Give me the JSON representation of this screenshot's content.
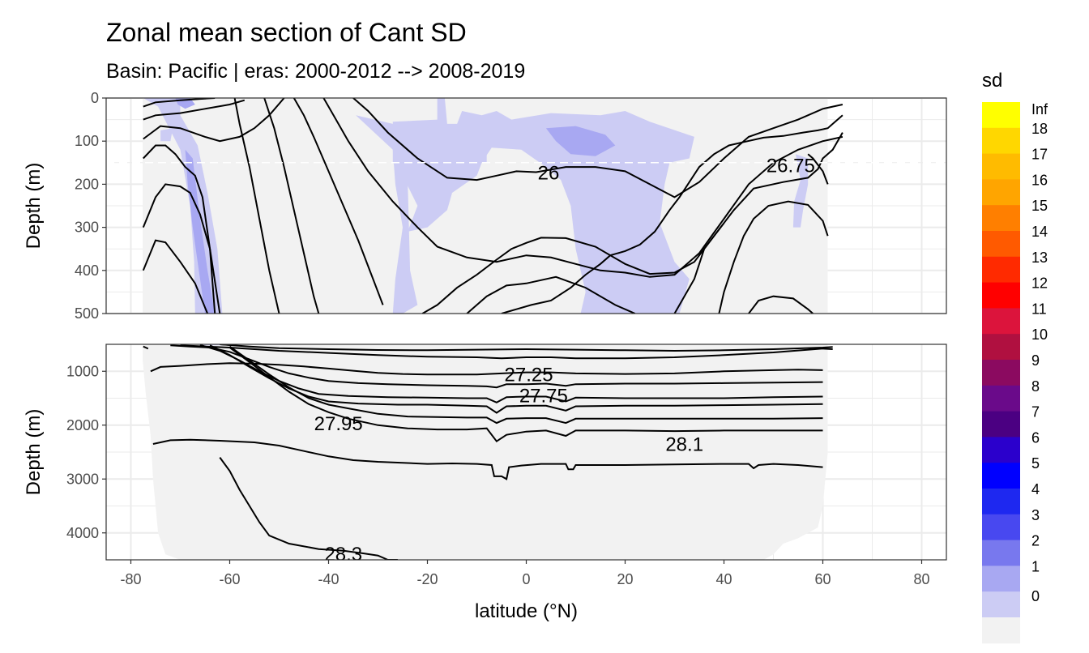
{
  "chart_data": {
    "type": "heatmap",
    "title": "Zonal mean section of Cant SD",
    "subtitle": "Basin: Pacific | eras: 2000-2012 --> 2008-2019",
    "xlabel": "latitude (°N)",
    "x_ticks": [
      "-80",
      "-60",
      "-40",
      "-20",
      "0",
      "20",
      "40",
      "60",
      "80"
    ],
    "xlim": [
      -85,
      85
    ],
    "panels": [
      {
        "name": "upper",
        "ylabel": "Depth (m)",
        "ylim": [
          0,
          500
        ],
        "y_ticks": [
          "0",
          "100",
          "200",
          "300",
          "400",
          "500"
        ],
        "y_reversed": true,
        "reference_line_depth": 150,
        "contour_labels": [
          {
            "text": "26",
            "lat": 4.5,
            "depth": 172
          },
          {
            "text": "26.75",
            "lat": 53.5,
            "depth": 155
          }
        ]
      },
      {
        "name": "lower",
        "ylabel": "Depth (m)",
        "ylim": [
          500,
          4500
        ],
        "y_ticks": [
          "1000",
          "2000",
          "3000",
          "4000"
        ],
        "y_reversed": true,
        "contour_labels": [
          {
            "text": "27.25",
            "lat": 0.5,
            "depth": 1050
          },
          {
            "text": "27.75",
            "lat": 3.5,
            "depth": 1440
          },
          {
            "text": "27.95",
            "lat": -38,
            "depth": 1960
          },
          {
            "text": "28.1",
            "lat": 32,
            "depth": 2340
          },
          {
            "text": "28.3",
            "lat": -37,
            "depth": 4380
          }
        ]
      }
    ],
    "legend": {
      "title": "sd",
      "position": "right",
      "labels": [
        "Inf",
        "18",
        "17",
        "16",
        "15",
        "14",
        "13",
        "12",
        "11",
        "10",
        "9",
        "8",
        "7",
        "6",
        "5",
        "4",
        "3",
        "2",
        "1",
        "0"
      ],
      "colors": [
        "#ffff00",
        "#ffd700",
        "#ffbb00",
        "#ffa500",
        "#ff7f00",
        "#ff5a00",
        "#ff2a00",
        "#ff0000",
        "#dc143c",
        "#b01040",
        "#8b0a60",
        "#6a0a8a",
        "#4b0082",
        "#2b00cc",
        "#0000ff",
        "#1e28f0",
        "#4848f0",
        "#7878ee",
        "#a8a8f2",
        "#ccccf4",
        "#f2f2f2"
      ]
    }
  },
  "colors": {
    "panel_background": "#ffffff",
    "grid": "#ebebeb",
    "no_data_fill": "#f2f2f2",
    "sd_1_2_fill": "#ccccf4",
    "sd_2_3_fill": "#a8a8f2",
    "contour": "#000000",
    "panel_border": "#333333"
  }
}
